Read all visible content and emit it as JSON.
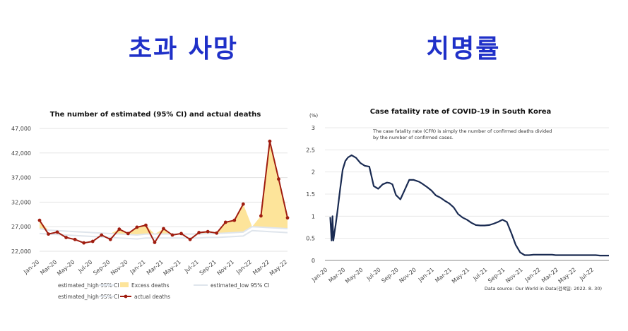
{
  "headings": {
    "left": "초과 사망",
    "right": "치명률"
  },
  "chart_data": [
    {
      "type": "line",
      "title": "The number of estimated (95% CI) and actual deaths",
      "categories": [
        "Jan-20",
        "Feb-20",
        "Mar-20",
        "Apr-20",
        "May-20",
        "Jun-20",
        "Jul-20",
        "Aug-20",
        "Sep-20",
        "Oct-20",
        "Nov-20",
        "Dec-20",
        "Jan-21",
        "Feb-21",
        "Mar-21",
        "Apr-21",
        "May-21",
        "Jun-21",
        "Jul-21",
        "Aug-21",
        "Sep-21",
        "Oct-21",
        "Nov-21",
        "Dec-21",
        "Jan-22",
        "Feb-22",
        "Mar-22",
        "Apr-22",
        "May-22"
      ],
      "x_tick_labels": [
        "Jan-20",
        "Mar-20",
        "May-20",
        "Jul-20",
        "Sep-20",
        "Nov-20",
        "Jan-21",
        "Mar-21",
        "May-21",
        "Jul-21",
        "Sep-21",
        "Nov-21",
        "Jan-22",
        "Mar-22",
        "May-22"
      ],
      "ylim": [
        22000,
        47000
      ],
      "y_ticks": [
        22000,
        27000,
        32000,
        37000,
        42000,
        47000
      ],
      "y_tick_labels": [
        "22,000",
        "27,000",
        "32,000",
        "37,000",
        "42,000",
        "47,000"
      ],
      "series": [
        {
          "name": "actual deaths",
          "color": "#a01d10",
          "values": [
            28300,
            25500,
            25900,
            24800,
            24400,
            23700,
            24000,
            25300,
            24400,
            26500,
            25600,
            26900,
            27300,
            23800,
            26600,
            25300,
            25600,
            24400,
            25800,
            26000,
            25700,
            27900,
            28300,
            31600,
            null,
            29200,
            44400,
            36700,
            28800
          ]
        },
        {
          "name": "estimated_high 95% CI",
          "color": "#dfe5ec",
          "values": [
            26600,
            26300,
            26200,
            26100,
            26000,
            25900,
            25800,
            25700,
            25600,
            25500,
            25400,
            25300,
            25500,
            25500,
            25500,
            25500,
            25500,
            25500,
            25500,
            25600,
            25600,
            25700,
            25800,
            25900,
            27000,
            26900,
            26800,
            26700,
            26600
          ]
        },
        {
          "name": "estimated_low 95% CI",
          "color": "#dfe5ec",
          "values": [
            25600,
            25500,
            25400,
            25300,
            25200,
            25100,
            25000,
            24900,
            24800,
            24700,
            24600,
            24500,
            24700,
            24700,
            24700,
            24700,
            24700,
            24700,
            24700,
            24800,
            24800,
            24900,
            25000,
            25100,
            26200,
            26100,
            26000,
            25900,
            25800
          ]
        }
      ],
      "legend": [
        {
          "label": "estimated_high 95% CI",
          "kind": "line-light"
        },
        {
          "label": "Excess deaths",
          "kind": "area"
        },
        {
          "label": "estimated_low 95% CI",
          "kind": "line-light"
        },
        {
          "label": "estimated_high 95% CI",
          "kind": "line-light"
        },
        {
          "label": "actual deaths",
          "kind": "line-marker"
        }
      ],
      "excess_color": "#fde49a",
      "grid": true,
      "legend_position": "bottom"
    },
    {
      "type": "line",
      "title": "Case fatality rate of COVID-19 in South Korea",
      "unit_label": "(%)",
      "annotation": "The case fatality rate (CFR) is simply the number of confirmed deaths divided by the number of confirmed cases.",
      "annotation_lines": [
        "The case fatality rate (CFR) is simply the number of confirmed deaths divided",
        "by the number of confirmed cases."
      ],
      "source": "Data source: Our World in Data(검색일: 2022. 8. 30)",
      "x_tick_labels": [
        "Jan-20",
        "Mar-20",
        "May-20",
        "Jul-20",
        "Sep-20",
        "Nov-20",
        "Jan-21",
        "Mar-21",
        "May-21",
        "Jul-21",
        "Sep-21",
        "Nov-21",
        "Jan-22",
        "Mar-22",
        "May-22",
        "Jul-22"
      ],
      "ylim": [
        0,
        3
      ],
      "y_ticks": [
        0,
        0.5,
        1,
        1.5,
        2,
        2.5,
        3
      ],
      "y_tick_labels": [
        "0",
        "0.5",
        "1",
        "1.5",
        "2",
        "2.5",
        "3"
      ],
      "xlim_months": [
        0,
        32
      ],
      "series": [
        {
          "name": "",
          "color": "#1a2b52",
          "x_months": [
            0.6,
            0.75,
            0.85,
            0.95,
            1.05,
            1.2,
            1.4,
            1.7,
            2.0,
            2.3,
            2.6,
            3.0,
            3.5,
            4.0,
            4.5,
            5.0,
            5.5,
            6.0,
            6.5,
            7.0,
            7.3,
            7.6,
            8.0,
            8.5,
            9.0,
            9.5,
            10.0,
            10.3,
            10.6,
            11.0,
            11.5,
            12.0,
            12.5,
            13.0,
            13.5,
            14.0,
            14.5,
            15.0,
            15.5,
            16.0,
            16.5,
            17.0,
            17.5,
            18.0,
            18.5,
            19.0,
            19.5,
            20.0,
            20.5,
            21.0,
            21.5,
            22.0,
            22.5,
            23.0,
            23.5,
            24.0,
            24.3,
            24.6,
            25.0,
            25.3,
            25.6,
            26.0,
            26.5,
            27.0,
            27.5,
            28.0,
            28.5,
            29.0,
            29.5,
            30.0,
            30.5,
            31.0,
            31.5,
            32.0
          ],
          "values": [
            0.98,
            0.45,
            1.0,
            0.45,
            0.6,
            0.8,
            1.1,
            1.6,
            2.05,
            2.25,
            2.33,
            2.38,
            2.32,
            2.2,
            2.14,
            2.12,
            1.68,
            1.62,
            1.72,
            1.76,
            1.75,
            1.72,
            1.48,
            1.38,
            1.6,
            1.82,
            1.82,
            1.8,
            1.78,
            1.73,
            1.66,
            1.58,
            1.47,
            1.42,
            1.35,
            1.29,
            1.2,
            1.05,
            0.97,
            0.92,
            0.85,
            0.8,
            0.79,
            0.79,
            0.8,
            0.83,
            0.87,
            0.92,
            0.87,
            0.62,
            0.35,
            0.18,
            0.12,
            0.12,
            0.13,
            0.13,
            0.13,
            0.13,
            0.13,
            0.13,
            0.13,
            0.12,
            0.12,
            0.12,
            0.12,
            0.12,
            0.12,
            0.12,
            0.12,
            0.12,
            0.12,
            0.11,
            0.11,
            0.11
          ]
        }
      ],
      "grid": true
    }
  ]
}
